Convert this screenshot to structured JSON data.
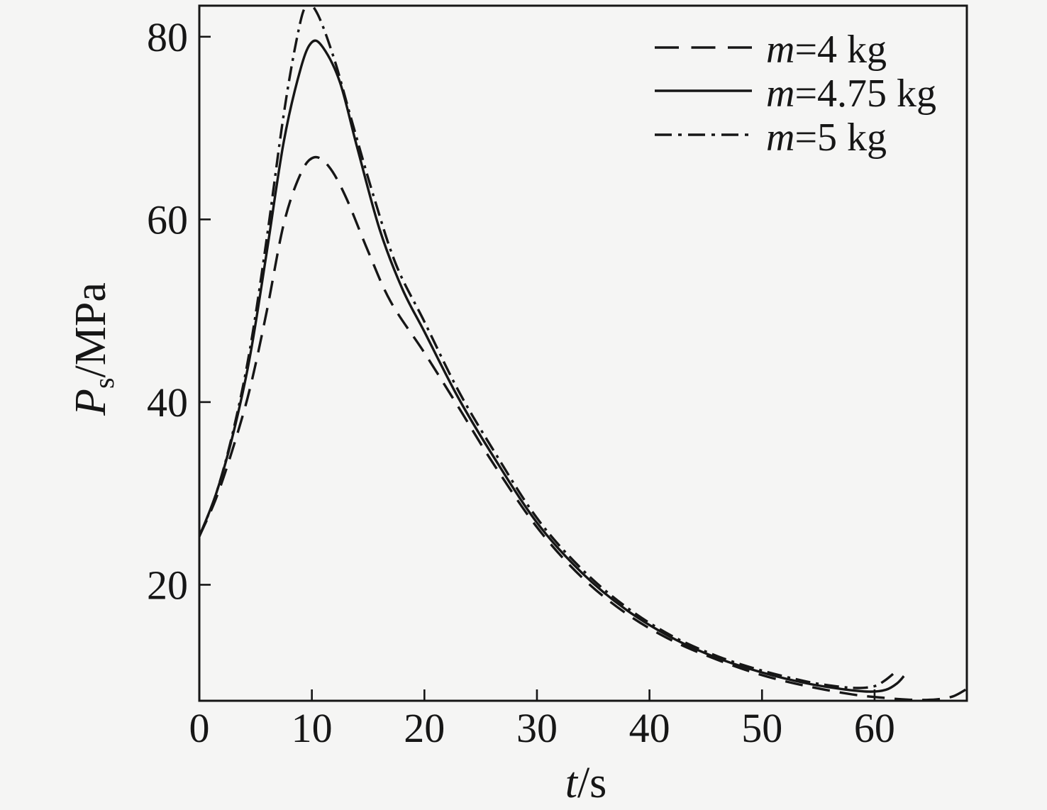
{
  "figure": {
    "background": "#f5f5f4",
    "ink": "#161616"
  },
  "chart_data": {
    "type": "line",
    "title": "",
    "xlabel": {
      "var": "t",
      "rest": "/s"
    },
    "ylabel": {
      "var": "P",
      "sub": "s",
      "rest": "/MPa"
    },
    "xlim": [
      0,
      68.2
    ],
    "ylim": [
      7.3,
      83.4
    ],
    "xticks": [
      {
        "value": 0,
        "label": "0"
      },
      {
        "value": 10,
        "label": "10"
      },
      {
        "value": 20,
        "label": "20"
      },
      {
        "value": 30,
        "label": "30"
      },
      {
        "value": 40,
        "label": "40"
      },
      {
        "value": 50,
        "label": "50"
      },
      {
        "value": 60,
        "label": "60"
      }
    ],
    "yticks": [
      {
        "value": 80,
        "label": "80"
      },
      {
        "value": 60,
        "label": "60"
      },
      {
        "value": 40,
        "label": "40"
      },
      {
        "value": 20,
        "label": "20"
      }
    ],
    "grid": false,
    "legend_position": "top-right",
    "x_units": "s",
    "y_units": "MPa",
    "series": [
      {
        "name": "m=4 kg",
        "name_var": "m",
        "name_rest": "=4 kg",
        "style": "dashed",
        "t": [
          0,
          1.5,
          3,
          4.5,
          6,
          7.5,
          9,
          10.2,
          11.5,
          13,
          15,
          17,
          20,
          23,
          26,
          30,
          34,
          38,
          42,
          46,
          50,
          54,
          58,
          61,
          63.5,
          65.5,
          67,
          68.2
        ],
        "p": [
          25.3,
          29.5,
          35,
          41.5,
          50,
          59.5,
          65,
          66.8,
          65.8,
          62.5,
          56.5,
          51,
          45.4,
          39.5,
          33.5,
          26.3,
          20.8,
          16.8,
          13.9,
          11.8,
          10.1,
          8.9,
          8,
          7.6,
          7.4,
          7.45,
          7.8,
          8.6
        ]
      },
      {
        "name": "m=4.75 kg",
        "name_var": "m",
        "name_rest": "=4.75 kg",
        "style": "solid",
        "t": [
          0,
          1.5,
          3,
          4.5,
          6,
          7.5,
          9,
          10,
          11,
          12.5,
          14,
          16,
          18,
          20,
          23,
          26,
          30,
          34,
          38,
          42,
          46,
          50,
          54,
          57,
          59.5,
          61,
          62,
          62.6
        ],
        "p": [
          25.3,
          30,
          36.5,
          45,
          56.5,
          68.5,
          76.5,
          79.4,
          78.8,
          75,
          68,
          59,
          52.5,
          47.7,
          40.5,
          34.3,
          26.8,
          21.3,
          17.2,
          14.2,
          12,
          10.4,
          9.2,
          8.6,
          8.3,
          8.5,
          9.2,
          10
        ]
      },
      {
        "name": "m=5 kg",
        "name_var": "m",
        "name_rest": "=5 kg",
        "style": "dashdot",
        "t": [
          0,
          1.5,
          3,
          4.5,
          6,
          7.5,
          8.7,
          9.5,
          10.5,
          12,
          13.5,
          15.5,
          17.5,
          20,
          23,
          26,
          30,
          34,
          38,
          42,
          46,
          50,
          54,
          56.5,
          58.5,
          60,
          61,
          61.8
        ],
        "p": [
          25.3,
          30,
          36.8,
          45.8,
          58,
          71.5,
          80,
          83.4,
          82.5,
          77.5,
          71,
          62.5,
          55,
          48.8,
          41.3,
          35,
          27.3,
          21.7,
          17.5,
          14.4,
          12.2,
          10.6,
          9.4,
          8.9,
          8.7,
          8.9,
          9.6,
          10.4
        ]
      }
    ]
  }
}
